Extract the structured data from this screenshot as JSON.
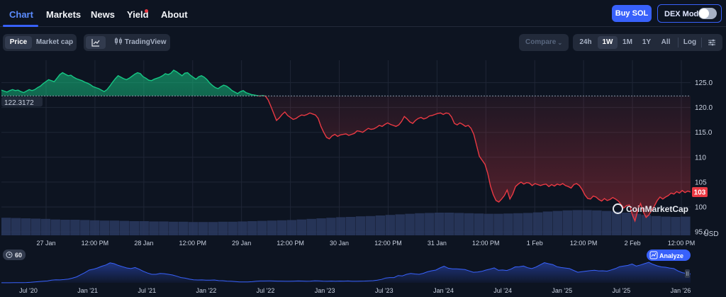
{
  "nav": {
    "tabs": [
      "Chart",
      "Markets",
      "News",
      "Yield",
      "About"
    ],
    "active_tab": "Chart",
    "buy_label": "Buy SOL",
    "dex_label": "DEX Mode"
  },
  "toolbar": {
    "price_label": "Price",
    "marketcap_label": "Market cap",
    "tradingview_label": "TradingView",
    "compare_label": "Compare",
    "ranges": [
      "24h",
      "1W",
      "1M",
      "1Y",
      "All"
    ],
    "active_range": "1W",
    "log_label": "Log",
    "icons": [
      "line-chart-icon",
      "candles-icon",
      "chevron-down-icon",
      "sliders-icon",
      "clock-icon"
    ]
  },
  "chart_data": {
    "type": "line",
    "x_labels": [
      "27 Jan",
      "12:00 PM",
      "28 Jan",
      "12:00 PM",
      "29 Jan",
      "12:00 PM",
      "30 Jan",
      "12:00 PM",
      "31 Jan",
      "12:00 PM",
      "1 Feb",
      "12:00 PM",
      "2 Feb",
      "12:00 PM"
    ],
    "y_ticks": [
      125.0,
      120.0,
      115.0,
      110,
      105,
      100,
      95.0
    ],
    "y_tick_labels": [
      "125.0",
      "120.0",
      "115.0",
      "110",
      "105",
      "100",
      "95.0"
    ],
    "ylim": [
      94.3,
      129.5
    ],
    "y_unit": "USD",
    "reference_value": 122.3172,
    "reference_label": "122.3172",
    "current_value": 103,
    "current_label": "103",
    "up_color": "#16c784",
    "down_color": "#ea3943",
    "series": [
      {
        "values": [
          123.5,
          123.3,
          123.1,
          123.4,
          123.6,
          123.4,
          123.5,
          123.2,
          123.0,
          123.3,
          123.6,
          123.4,
          123.6,
          124.0,
          124.3,
          124.8,
          125.2,
          125.6,
          125.4,
          125.2,
          125.9,
          126.6,
          127.0,
          126.7,
          126.4,
          126.5,
          126.1,
          125.8,
          125.6,
          125.4,
          125.1,
          124.9,
          124.6,
          124.2,
          124.0,
          123.8,
          123.5,
          123.2,
          123.6,
          124.3,
          125.1,
          125.8,
          126.4,
          126.1,
          125.8,
          125.6,
          125.9,
          126.3,
          126.7,
          127.0,
          126.8,
          126.2,
          125.9,
          125.5,
          125.4,
          125.7,
          125.9,
          126.1,
          126.4,
          126.8,
          126.6,
          126.9,
          127.5,
          127.2,
          126.8,
          126.4,
          126.9,
          127.0,
          126.5,
          126.1,
          125.7,
          126.2,
          126.4,
          126.1,
          125.6,
          124.9,
          124.4,
          124.0,
          123.8,
          124.2,
          124.5,
          124.3,
          123.9,
          123.4,
          123.1,
          122.8,
          123.2,
          123.4,
          123.0,
          122.8,
          122.6,
          122.5,
          122.4,
          122.3,
          122.4,
          122.3,
          121.5,
          120.2,
          118.8,
          117.4,
          117.9,
          118.6,
          119.1,
          118.4,
          118.0,
          117.6,
          117.8,
          118.2,
          118.5,
          118.4,
          118.6,
          118.9,
          118.7,
          118.5,
          117.8,
          116.2,
          115.0,
          114.0,
          113.7,
          114.3,
          114.6,
          114.2,
          114.5,
          114.6,
          114.7,
          114.4,
          114.6,
          114.8,
          115.3,
          115.2,
          115.0,
          115.4,
          115.8,
          115.6,
          115.7,
          116.0,
          116.4,
          116.2,
          116.6,
          116.9,
          116.6,
          116.4,
          116.2,
          116.5,
          117.2,
          118.2,
          117.7,
          117.1,
          116.8,
          117.4,
          117.8,
          118.0,
          117.7,
          117.9,
          118.3,
          118.4,
          118.6,
          118.8,
          118.9,
          118.6,
          118.9,
          118.8,
          118.1,
          116.8,
          116.5,
          116.9,
          116.6,
          116.2,
          116.4,
          115.8,
          114.6,
          112.4,
          110.2,
          109.4,
          108.6,
          106.8,
          104.2,
          102.5,
          101.3,
          101.0,
          101.6,
          102.3,
          103.4,
          101.6,
          102.6,
          104.1,
          104.6,
          105.0,
          104.6,
          104.9,
          104.8,
          104.3,
          104.7,
          104.5,
          104.3,
          104.5,
          104.6,
          104.1,
          104.5,
          104.2,
          104.6,
          104.4,
          104.7,
          104.3,
          104.1,
          103.8,
          104.5,
          104.7,
          104.3,
          103.5,
          102.4,
          101.7,
          101.6,
          102.2,
          102.0,
          101.5,
          101.2,
          101.7,
          101.3,
          101.5,
          101.9,
          101.6,
          101.2,
          100.5,
          99.8,
          100.3,
          100.4,
          98.5,
          97.2,
          99.3,
          100.7,
          99.0,
          97.9,
          98.4,
          99.3,
          100.2,
          101.3,
          102.0,
          101.6,
          102.0,
          102.3,
          102.8,
          102.6,
          103.1,
          102.8,
          103.3,
          102.9,
          103.2,
          103.0
        ]
      }
    ],
    "volume_values": [
      0.62,
      0.61,
      0.6,
      0.59,
      0.58,
      0.56,
      0.55,
      0.55,
      0.54,
      0.53,
      0.52,
      0.52,
      0.51,
      0.5,
      0.5,
      0.49,
      0.49,
      0.48,
      0.48,
      0.47,
      0.47,
      0.47,
      0.48,
      0.48,
      0.49,
      0.5,
      0.51,
      0.52,
      0.53,
      0.54,
      0.56,
      0.58,
      0.6,
      0.62,
      0.64,
      0.65,
      0.67,
      0.68,
      0.7,
      0.72,
      0.74,
      0.76,
      0.78,
      0.79,
      0.8,
      0.8,
      0.79,
      0.78,
      0.77,
      0.76,
      0.76,
      0.77,
      0.78,
      0.79,
      0.81,
      0.84,
      0.86,
      0.88,
      0.89,
      0.89,
      0.88,
      0.86,
      0.84,
      0.8,
      0.76,
      0.72,
      0.68,
      0.66,
      0.65,
      0.66
    ],
    "grid": true
  },
  "range_bar": {
    "interval_label": "60",
    "analyze_label": "Analyze",
    "x_labels": [
      "Jul '20",
      "Jan '21",
      "Jul '21",
      "Jan '22",
      "Jul '22",
      "Jan '23",
      "Jul '23",
      "Jan '24",
      "Jul '24",
      "Jan '25",
      "Jul '25",
      "Jan '26"
    ],
    "history_values": [
      0.5,
      0.8,
      1.0,
      1.5,
      1.5,
      2.5,
      3.5,
      6.0,
      10,
      14,
      18,
      22,
      32,
      35,
      34,
      38,
      44,
      55,
      70,
      95,
      120,
      150,
      160,
      175,
      195,
      210,
      235,
      225,
      205,
      190,
      175,
      168,
      180,
      160,
      135,
      115,
      100,
      100,
      110,
      108,
      100,
      92,
      78,
      62,
      55,
      44,
      36,
      33,
      34,
      31,
      31,
      33,
      26,
      25,
      20,
      18,
      15,
      11,
      10,
      10,
      13,
      18,
      22,
      22,
      23,
      22,
      20,
      20,
      18,
      18,
      20,
      22,
      21,
      19,
      20,
      24,
      23,
      20,
      19,
      21,
      19,
      21,
      20,
      22,
      18,
      18,
      20,
      21,
      23,
      25,
      32,
      40,
      57,
      62,
      62,
      86,
      82,
      100,
      110,
      104,
      100,
      112,
      130,
      142,
      150,
      175,
      195,
      172,
      165,
      165,
      160,
      156,
      140,
      124,
      128,
      135,
      150,
      162,
      176,
      148,
      151,
      145,
      162,
      188,
      190,
      198,
      178,
      168,
      186,
      212,
      238,
      225,
      215,
      190,
      180,
      174,
      168,
      146,
      124,
      132,
      138,
      144,
      148,
      141,
      142,
      138,
      152,
      168,
      190,
      198,
      205,
      222,
      198,
      210,
      226,
      242,
      218,
      200,
      188,
      184,
      174,
      168,
      140,
      120,
      110,
      105
    ]
  },
  "watermark": "CoinMarketCap"
}
